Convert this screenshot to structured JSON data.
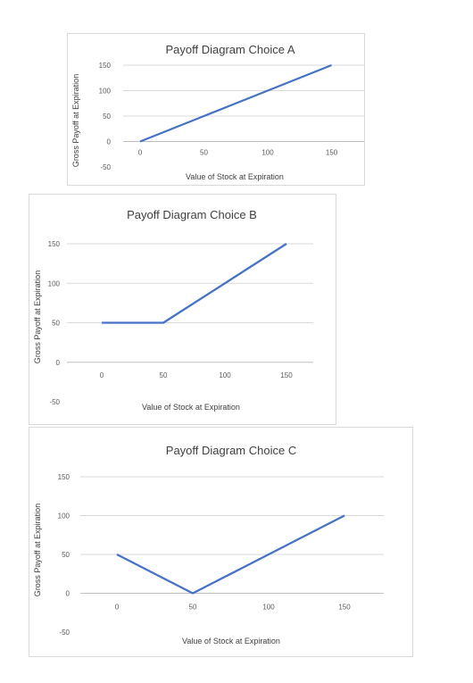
{
  "charts": [
    {
      "type": "line",
      "title": "Payoff Diagram Choice A",
      "xlabel": "Value of Stock at Expiration",
      "ylabel": "Gross Payoff at Expiration",
      "x_ticks": [
        "0",
        "50",
        "100",
        "150"
      ],
      "y_ticks": [
        "150",
        "100",
        "50",
        "0",
        "-50"
      ],
      "ylim": [
        -50,
        150
      ],
      "grid": true,
      "series": [
        {
          "x": [
            0,
            50,
            100,
            150
          ],
          "values": [
            0,
            50,
            100,
            150
          ]
        }
      ],
      "line_color": "#4472c4"
    },
    {
      "type": "line",
      "title": "Payoff Diagram Choice B",
      "xlabel": "Value of Stock at Expiration",
      "ylabel": "Gross Payoff at Expiration",
      "x_ticks": [
        "0",
        "50",
        "100",
        "150"
      ],
      "y_ticks": [
        "150",
        "100",
        "50",
        "0",
        "-50"
      ],
      "ylim": [
        -50,
        150
      ],
      "grid": true,
      "series": [
        {
          "x": [
            0,
            50,
            100,
            150
          ],
          "values": [
            50,
            50,
            100,
            150
          ]
        }
      ],
      "line_color": "#4472c4"
    },
    {
      "type": "line",
      "title": "Payoff Diagram Choice C",
      "xlabel": "Value of Stock at Expiration",
      "ylabel": "Gross Payoff at Expiration",
      "x_ticks": [
        "0",
        "50",
        "100",
        "150"
      ],
      "y_ticks": [
        "150",
        "100",
        "50",
        "0",
        "-50"
      ],
      "ylim": [
        -50,
        150
      ],
      "grid": true,
      "series": [
        {
          "x": [
            0,
            50,
            100,
            150
          ],
          "values": [
            50,
            0,
            50,
            100
          ]
        }
      ],
      "line_color": "#4472c4"
    }
  ]
}
